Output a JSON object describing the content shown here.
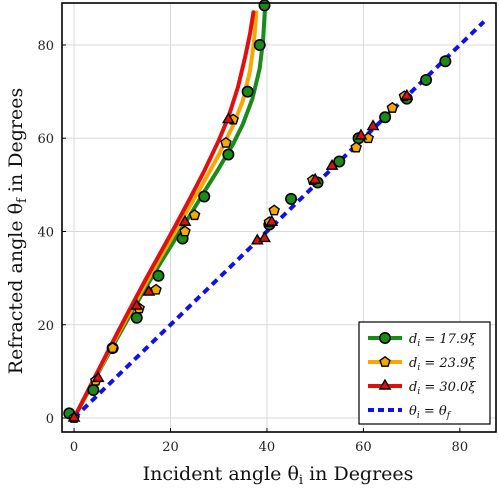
{
  "chart_data": {
    "type": "line",
    "xlabel": "Incident angle θi in Degrees",
    "ylabel": "Refracted angle θf in Degrees",
    "xlim": [
      -2.5,
      87.5
    ],
    "ylim": [
      -3,
      89
    ],
    "xticks": [
      0,
      20,
      40,
      60,
      80
    ],
    "yticks": [
      0,
      20,
      40,
      60,
      80
    ],
    "grid": true,
    "legend_position": "bottom-right",
    "series": [
      {
        "name": "d_i = 17.9ξ",
        "label": {
          "pre": "d",
          "sub": "i",
          "post": " = 17.9ξ"
        },
        "color": "#1a8a1a",
        "marker": "circle",
        "curve": [
          [
            0,
            0
          ],
          [
            3,
            5.8
          ],
          [
            6,
            11.6
          ],
          [
            9,
            17.2
          ],
          [
            12,
            22.8
          ],
          [
            15,
            28.2
          ],
          [
            18,
            33.4
          ],
          [
            21,
            38.4
          ],
          [
            24,
            43.4
          ],
          [
            27,
            48.5
          ],
          [
            30,
            53.5
          ],
          [
            33,
            58.8
          ],
          [
            35,
            63.0
          ],
          [
            37,
            68.5
          ],
          [
            38.5,
            75
          ],
          [
            39.2,
            81
          ],
          [
            39.6,
            88
          ]
        ],
        "points": [
          [
            -1,
            1
          ],
          [
            4,
            6
          ],
          [
            8,
            15
          ],
          [
            13,
            21.5
          ],
          [
            17.5,
            30.5
          ],
          [
            22.5,
            38.5
          ],
          [
            27,
            47.5
          ],
          [
            32,
            56.5
          ],
          [
            36,
            70
          ],
          [
            38.5,
            80
          ],
          [
            39.5,
            88.5
          ],
          [
            40.5,
            41.5
          ],
          [
            45,
            47
          ],
          [
            50.5,
            50.5
          ],
          [
            55,
            55
          ],
          [
            59,
            60
          ],
          [
            64.5,
            64.5
          ],
          [
            69,
            68.5
          ],
          [
            73,
            72.5
          ],
          [
            77,
            76.5
          ]
        ]
      },
      {
        "name": "d_i = 23.9ξ",
        "label": {
          "pre": "d",
          "sub": "i",
          "post": " = 23.9ξ"
        },
        "color": "#f5a800",
        "marker": "pentagon",
        "curve": [
          [
            0,
            0
          ],
          [
            3,
            6
          ],
          [
            6,
            11.9
          ],
          [
            9,
            17.8
          ],
          [
            12,
            23.5
          ],
          [
            15,
            29.1
          ],
          [
            18,
            34.6
          ],
          [
            21,
            40.0
          ],
          [
            24,
            45.4
          ],
          [
            27,
            50.8
          ],
          [
            30,
            56.4
          ],
          [
            33,
            62.8
          ],
          [
            35,
            68.0
          ],
          [
            36.5,
            74.5
          ],
          [
            37.3,
            80.5
          ],
          [
            37.8,
            87
          ]
        ],
        "points": [
          [
            0,
            0
          ],
          [
            4.5,
            8
          ],
          [
            8,
            15
          ],
          [
            13.5,
            23.5
          ],
          [
            17,
            27.5
          ],
          [
            23,
            40
          ],
          [
            25,
            43.5
          ],
          [
            31.5,
            59
          ],
          [
            33,
            64
          ],
          [
            40.5,
            42
          ],
          [
            41.5,
            44.5
          ],
          [
            49.5,
            51
          ],
          [
            58.5,
            58
          ],
          [
            61,
            60
          ],
          [
            66,
            66.5
          ],
          [
            68.5,
            69
          ]
        ]
      },
      {
        "name": "d_i = 30.0ξ",
        "label": {
          "pre": "d",
          "sub": "i",
          "post": " = 30.0ξ"
        },
        "color": "#e01010",
        "marker": "triangle",
        "curve": [
          [
            0,
            0
          ],
          [
            3,
            6.1
          ],
          [
            6,
            12.2
          ],
          [
            9,
            18.3
          ],
          [
            12,
            24.2
          ],
          [
            15,
            30.0
          ],
          [
            18,
            35.6
          ],
          [
            21,
            41.2
          ],
          [
            24,
            47.0
          ],
          [
            27,
            53.0
          ],
          [
            30,
            59.5
          ],
          [
            32,
            64.5
          ],
          [
            34,
            71.0
          ],
          [
            35.5,
            77.5
          ],
          [
            36.5,
            82.5
          ],
          [
            37.2,
            87
          ]
        ],
        "points": [
          [
            0,
            0
          ],
          [
            5,
            8.5
          ],
          [
            13,
            24
          ],
          [
            15.5,
            27
          ],
          [
            23,
            42
          ],
          [
            32,
            64
          ],
          [
            38,
            38
          ],
          [
            39.5,
            38.5
          ],
          [
            41,
            42
          ],
          [
            50,
            51
          ],
          [
            53.5,
            54
          ],
          [
            59.5,
            60.5
          ],
          [
            62,
            62.5
          ],
          [
            69,
            69
          ]
        ]
      },
      {
        "name": "θi = θf",
        "label": {
          "pre": "θ",
          "sub": "i",
          "post": " = θ",
          "sub2": "f"
        },
        "color": "#1010ee",
        "marker": "none",
        "dashed": true,
        "curve": [
          [
            0,
            0
          ],
          [
            85,
            85
          ]
        ]
      }
    ]
  }
}
